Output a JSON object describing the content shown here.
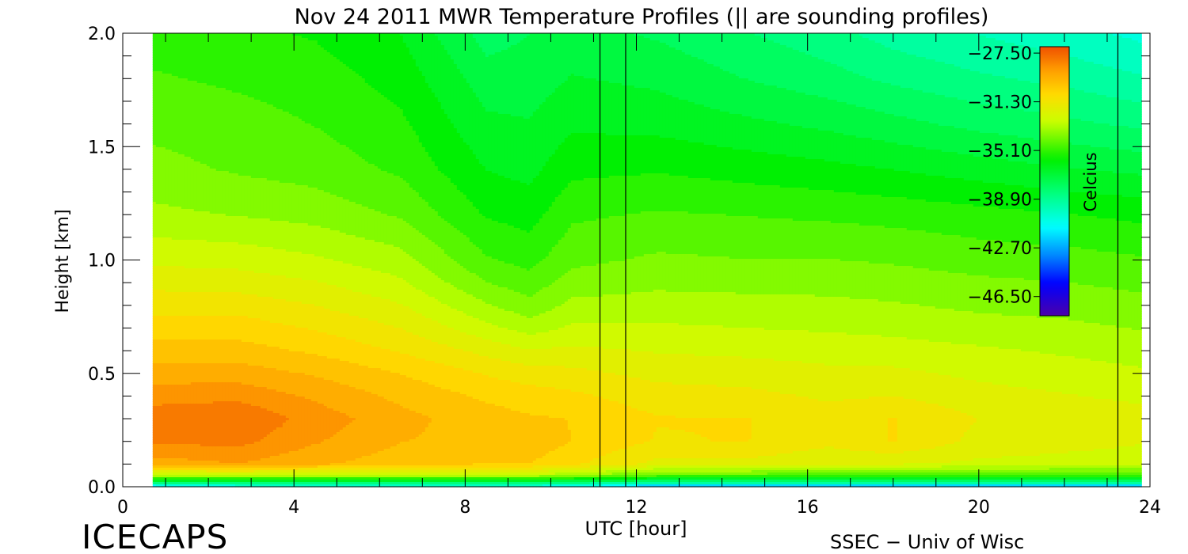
{
  "chart_data": {
    "type": "heatmap",
    "title": "Nov 24 2011 MWR Temperature Profiles (|| are sounding profiles)",
    "xlabel": "UTC [hour]",
    "ylabel": "Height [km]",
    "xlim": [
      0,
      24
    ],
    "ylim": [
      0,
      2.0
    ],
    "x_ticks": [
      0,
      4,
      8,
      12,
      16,
      20,
      24
    ],
    "x_tick_labels": [
      "0",
      "4",
      "8",
      "12",
      "16",
      "20",
      "24"
    ],
    "y_ticks": [
      0.0,
      0.5,
      1.0,
      1.5,
      2.0
    ],
    "y_tick_labels": [
      "0.0",
      "0.5",
      "1.0",
      "1.5",
      "2.0"
    ],
    "data_extent_x": [
      0.7,
      23.8
    ],
    "heights": [
      0.0,
      0.02,
      0.05,
      0.1,
      0.2,
      0.3,
      0.4,
      0.5,
      0.6,
      0.7,
      0.8,
      0.9,
      1.0,
      1.2,
      1.4,
      1.6,
      1.8,
      2.0
    ],
    "times": [
      0.7,
      2.7,
      4.5,
      6.5,
      8.5,
      9.5,
      10.5,
      12.5,
      14.5,
      16.5,
      18,
      20,
      22,
      23.8
    ],
    "temperature": [
      [
        -42,
        -41,
        -41,
        -41,
        -41,
        -41,
        -41,
        -43,
        -43,
        -43,
        -43,
        -43,
        -43,
        -43
      ],
      [
        -37.5,
        -37.5,
        -37.5,
        -37.5,
        -37.5,
        -37.5,
        -38,
        -38.5,
        -38.5,
        -38.5,
        -38.5,
        -38.5,
        -38.5,
        -38.5
      ],
      [
        -33,
        -33,
        -33,
        -33,
        -33,
        -33,
        -33.5,
        -34.5,
        -34.5,
        -35,
        -35,
        -35,
        -35,
        -35
      ],
      [
        -29.3,
        -29,
        -29.5,
        -30,
        -30.3,
        -30.3,
        -30.8,
        -31.8,
        -31.8,
        -32.2,
        -32.2,
        -32.4,
        -32.5,
        -32.6
      ],
      [
        -28.2,
        -28.1,
        -28.9,
        -29.6,
        -29.9,
        -29.8,
        -30.3,
        -31.0,
        -30.9,
        -31.4,
        -30.9,
        -31.8,
        -32.0,
        -32.2
      ],
      [
        -27.9,
        -27.7,
        -28.6,
        -29.4,
        -30.0,
        -30.2,
        -30.3,
        -30.9,
        -30.9,
        -31.3,
        -30.9,
        -31.6,
        -31.8,
        -32.0
      ],
      [
        -28.6,
        -28.5,
        -29.1,
        -29.8,
        -30.4,
        -30.6,
        -30.8,
        -31.3,
        -31.4,
        -31.7,
        -31.6,
        -32.0,
        -32.2,
        -32.4
      ],
      [
        -29.3,
        -29.3,
        -29.7,
        -30.3,
        -31.0,
        -31.3,
        -31.4,
        -31.8,
        -31.9,
        -32.1,
        -32.1,
        -32.4,
        -32.6,
        -32.8
      ],
      [
        -30.0,
        -30.0,
        -30.4,
        -31.0,
        -31.8,
        -32.2,
        -32.1,
        -32.3,
        -32.4,
        -32.5,
        -32.6,
        -32.8,
        -33.0,
        -33.2
      ],
      [
        -30.6,
        -30.6,
        -31.0,
        -31.6,
        -32.7,
        -33.2,
        -32.8,
        -32.8,
        -32.9,
        -33.0,
        -33.1,
        -33.3,
        -33.4,
        -33.6
      ],
      [
        -31.2,
        -31.2,
        -31.6,
        -32.2,
        -33.5,
        -34.0,
        -33.4,
        -33.3,
        -33.3,
        -33.4,
        -33.5,
        -33.7,
        -33.8,
        -34.0
      ],
      [
        -31.8,
        -31.9,
        -32.2,
        -32.8,
        -34.2,
        -34.6,
        -33.9,
        -33.7,
        -33.8,
        -33.8,
        -33.9,
        -34.1,
        -34.2,
        -34.4
      ],
      [
        -32.4,
        -32.5,
        -32.8,
        -33.3,
        -34.8,
        -35.1,
        -34.4,
        -34.1,
        -34.2,
        -34.2,
        -34.3,
        -34.5,
        -34.6,
        -34.8
      ],
      [
        -33.4,
        -33.6,
        -33.8,
        -34.3,
        -35.6,
        -35.8,
        -35.0,
        -34.8,
        -34.9,
        -35.0,
        -35.1,
        -35.3,
        -35.5,
        -35.7
      ],
      [
        -34.0,
        -34.3,
        -34.5,
        -35.0,
        -36.2,
        -36.4,
        -35.7,
        -35.6,
        -35.8,
        -36.0,
        -36.2,
        -36.5,
        -36.8,
        -37.0
      ],
      [
        -34.4,
        -34.6,
        -34.9,
        -35.4,
        -36.7,
        -36.8,
        -36.3,
        -36.4,
        -36.7,
        -37.0,
        -37.3,
        -37.7,
        -38.0,
        -38.3
      ],
      [
        -34.8,
        -35.0,
        -35.2,
        -35.8,
        -37.2,
        -37.2,
        -36.8,
        -37.0,
        -37.5,
        -37.9,
        -38.3,
        -38.7,
        -39.0,
        -39.4
      ],
      [
        -35.2,
        -35.4,
        -35.6,
        -36.2,
        -37.8,
        -37.5,
        -37.3,
        -37.6,
        -38.1,
        -38.6,
        -39.1,
        -39.5,
        -39.9,
        -40.3
      ]
    ],
    "sounding_times": [
      11.15,
      11.75,
      23.25
    ],
    "colorbar": {
      "label": "Celcius",
      "vmin": -48.0,
      "vmax": -27.0,
      "tick_values": [
        -27.5,
        -31.3,
        -35.1,
        -38.9,
        -42.7,
        -46.5
      ],
      "tick_labels": [
        "−27.50",
        "−31.30",
        "−35.10",
        "−38.90",
        "−42.70",
        "−46.50"
      ]
    },
    "footer_left": "ICECAPS",
    "footer_right": "SSEC − Univ of Wisc"
  }
}
